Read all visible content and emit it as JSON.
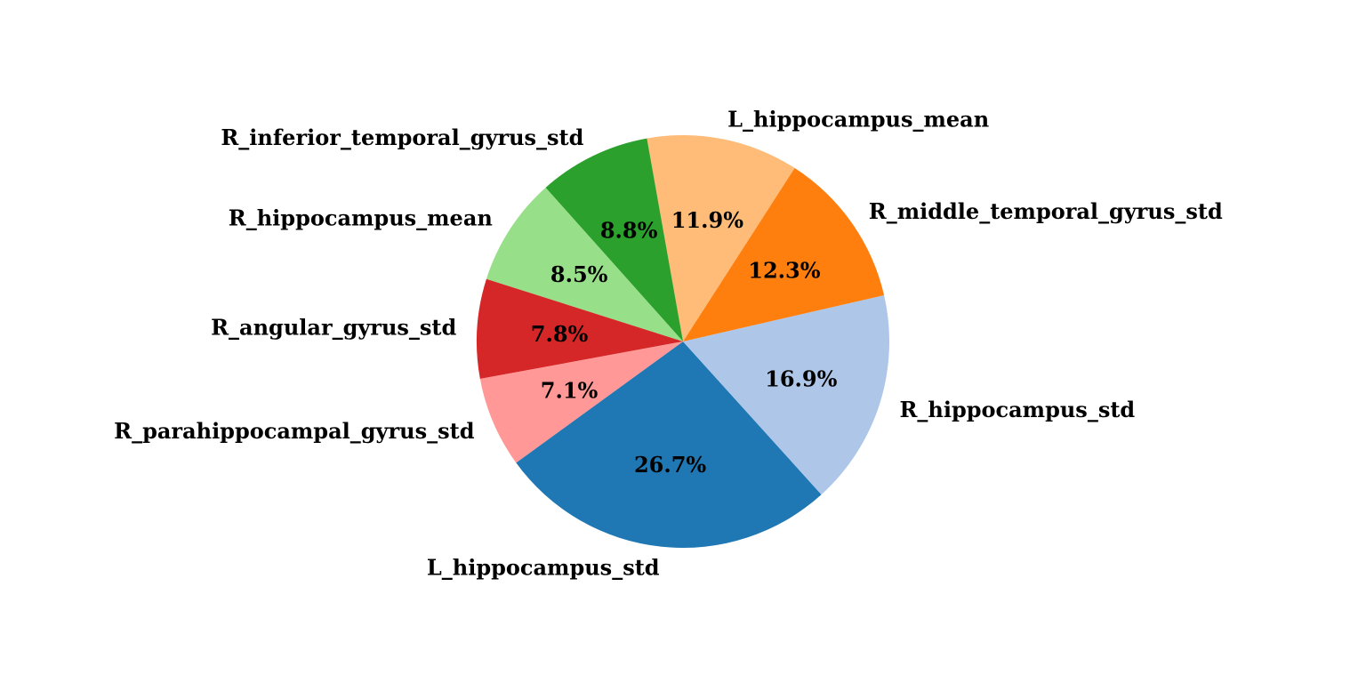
{
  "chart_data": {
    "type": "pie",
    "title": "",
    "start_angle_deg": 216,
    "direction": "counterclockwise",
    "slices": [
      {
        "label": "L_hippocampus_std",
        "value": 26.7,
        "pct_text": "26.7%",
        "color": "#1f77b4"
      },
      {
        "label": "R_hippocampus_std",
        "value": 16.9,
        "pct_text": "16.9%",
        "color": "#aec7e8"
      },
      {
        "label": "R_middle_temporal_gyrus_std",
        "value": 12.3,
        "pct_text": "12.3%",
        "color": "#ff7f0e"
      },
      {
        "label": "L_hippocampus_mean",
        "value": 11.9,
        "pct_text": "11.9%",
        "color": "#ffbb78"
      },
      {
        "label": "R_inferior_temporal_gyrus_std",
        "value": 8.8,
        "pct_text": "8.8%",
        "color": "#2ca02c"
      },
      {
        "label": "R_hippocampus_mean",
        "value": 8.5,
        "pct_text": "8.5%",
        "color": "#98df8a"
      },
      {
        "label": "R_angular_gyrus_std",
        "value": 7.8,
        "pct_text": "7.8%",
        "color": "#d62728"
      },
      {
        "label": "R_parahippocampal_gyrus_std",
        "value": 7.1,
        "pct_text": "7.1%",
        "color": "#ff9896"
      }
    ]
  }
}
